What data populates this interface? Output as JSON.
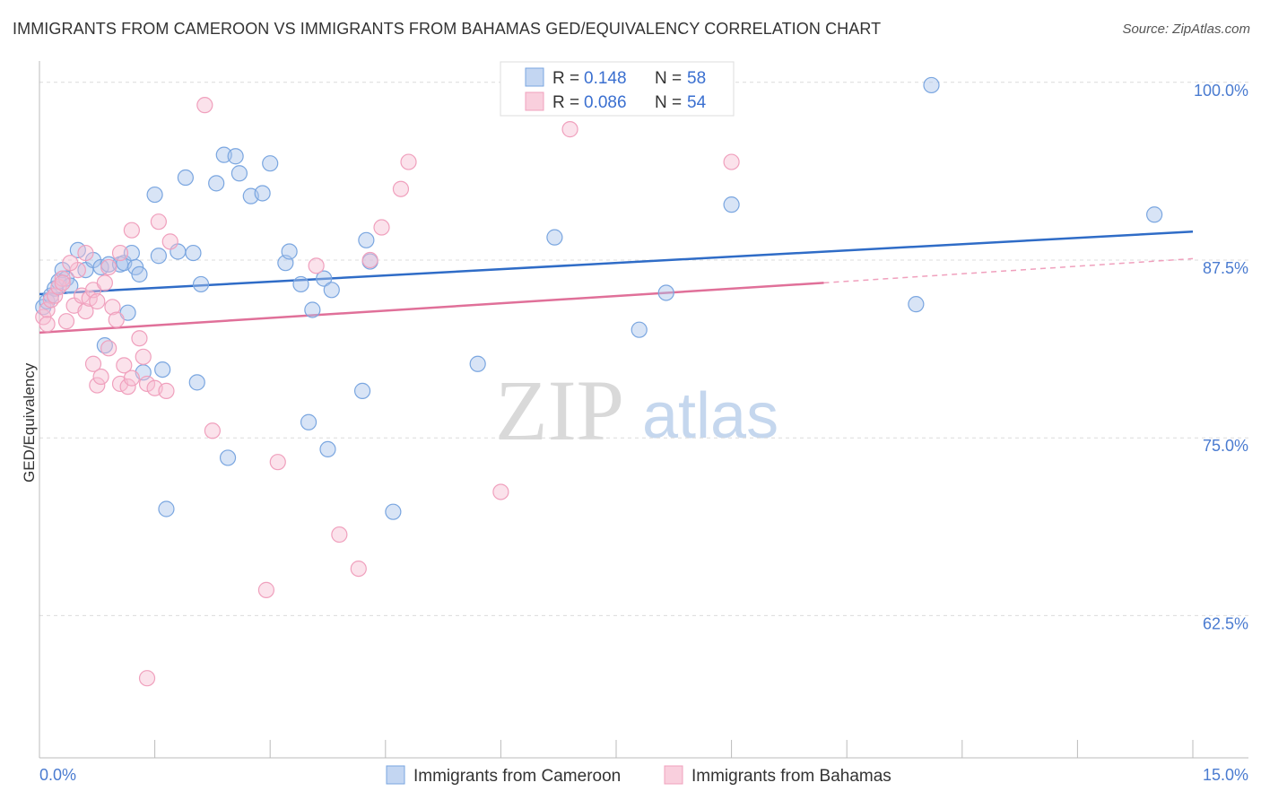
{
  "title": "IMMIGRANTS FROM CAMEROON VS IMMIGRANTS FROM BAHAMAS GED/EQUIVALENCY CORRELATION CHART",
  "source": "Source: ZipAtlas.com",
  "watermark": {
    "zip": "ZIP",
    "atlas": "atlas"
  },
  "legend": {
    "r_label": "R =",
    "n_label": "N =",
    "rows": [
      {
        "r": "0.148",
        "n": "58"
      },
      {
        "r": "0.086",
        "n": "54"
      }
    ]
  },
  "chart_data": {
    "type": "scatter",
    "title": "IMMIGRANTS FROM CAMEROON VS IMMIGRANTS FROM BAHAMAS GED/EQUIVALENCY CORRELATION CHART",
    "xlabel": "",
    "ylabel": "GED/Equivalency",
    "xlim": [
      0,
      15
    ],
    "ylim": [
      52.5,
      101.5
    ],
    "x_tick_labels": [
      "0.0%",
      "15.0%"
    ],
    "y_ticks": [
      62.5,
      75.0,
      87.5,
      100.0
    ],
    "y_tick_labels": [
      "62.5%",
      "75.0%",
      "87.5%",
      "100.0%"
    ],
    "grid": true,
    "legend_position": "bottom",
    "series": [
      {
        "name": "Immigrants from Cameroon",
        "color": "#7aa6e0",
        "r": 0.148,
        "n": 58,
        "trend": {
          "x": [
            0.0,
            15.0
          ],
          "y": [
            85.1,
            89.5
          ]
        },
        "points": [
          [
            0.05,
            84.2
          ],
          [
            0.1,
            84.6
          ],
          [
            0.15,
            85.0
          ],
          [
            0.2,
            85.5
          ],
          [
            0.25,
            86.0
          ],
          [
            0.3,
            86.8
          ],
          [
            0.35,
            86.2
          ],
          [
            0.4,
            85.7
          ],
          [
            0.5,
            88.2
          ],
          [
            0.6,
            86.8
          ],
          [
            0.7,
            87.5
          ],
          [
            0.8,
            87.0
          ],
          [
            0.9,
            87.2
          ],
          [
            1.05,
            87.2
          ],
          [
            1.1,
            87.3
          ],
          [
            1.2,
            88.0
          ],
          [
            1.25,
            87.0
          ],
          [
            1.3,
            86.5
          ],
          [
            1.55,
            87.8
          ],
          [
            1.8,
            88.1
          ],
          [
            2.0,
            88.0
          ],
          [
            2.1,
            85.8
          ],
          [
            1.5,
            92.1
          ],
          [
            1.9,
            93.3
          ],
          [
            2.3,
            92.9
          ],
          [
            2.4,
            94.9
          ],
          [
            2.55,
            94.8
          ],
          [
            2.6,
            93.6
          ],
          [
            2.75,
            92.0
          ],
          [
            2.9,
            92.2
          ],
          [
            3.0,
            94.3
          ],
          [
            3.2,
            87.3
          ],
          [
            3.25,
            88.1
          ],
          [
            3.4,
            85.8
          ],
          [
            3.55,
            84.0
          ],
          [
            3.7,
            86.2
          ],
          [
            3.8,
            85.4
          ],
          [
            0.85,
            81.5
          ],
          [
            1.15,
            83.8
          ],
          [
            1.35,
            79.6
          ],
          [
            1.6,
            79.8
          ],
          [
            2.05,
            78.9
          ],
          [
            2.45,
            73.6
          ],
          [
            3.5,
            76.1
          ],
          [
            3.75,
            74.2
          ],
          [
            4.25,
            88.9
          ],
          [
            4.3,
            87.4
          ],
          [
            4.2,
            78.3
          ],
          [
            1.65,
            70.0
          ],
          [
            4.6,
            69.8
          ],
          [
            5.7,
            80.2
          ],
          [
            6.7,
            89.1
          ],
          [
            7.8,
            82.6
          ],
          [
            8.15,
            85.2
          ],
          [
            9.0,
            91.4
          ],
          [
            11.4,
            84.4
          ],
          [
            11.6,
            99.8
          ],
          [
            14.5,
            90.7
          ]
        ]
      },
      {
        "name": "Immigrants from Bahamas",
        "color": "#f0a0bd",
        "r": 0.086,
        "n": 54,
        "trend": {
          "x": [
            0.0,
            10.2
          ],
          "y": [
            82.4,
            85.9
          ]
        },
        "trend_dashed": {
          "x": [
            10.2,
            15.0
          ],
          "y": [
            85.9,
            87.6
          ]
        },
        "points": [
          [
            0.05,
            83.5
          ],
          [
            0.1,
            84.0
          ],
          [
            0.15,
            84.7
          ],
          [
            0.2,
            85.0
          ],
          [
            0.25,
            85.6
          ],
          [
            0.3,
            86.2
          ],
          [
            0.35,
            83.2
          ],
          [
            0.45,
            84.3
          ],
          [
            0.5,
            86.8
          ],
          [
            0.55,
            85.0
          ],
          [
            0.6,
            83.9
          ],
          [
            0.65,
            84.8
          ],
          [
            0.7,
            85.4
          ],
          [
            0.75,
            84.6
          ],
          [
            0.85,
            85.9
          ],
          [
            0.9,
            87.0
          ],
          [
            0.95,
            84.2
          ],
          [
            1.0,
            83.3
          ],
          [
            1.05,
            88.0
          ],
          [
            0.4,
            87.3
          ],
          [
            1.2,
            89.6
          ],
          [
            1.55,
            90.2
          ],
          [
            1.7,
            88.8
          ],
          [
            2.15,
            98.4
          ],
          [
            0.7,
            80.2
          ],
          [
            0.75,
            78.7
          ],
          [
            0.8,
            79.3
          ],
          [
            0.9,
            81.3
          ],
          [
            1.05,
            78.8
          ],
          [
            1.1,
            80.1
          ],
          [
            1.15,
            78.6
          ],
          [
            1.2,
            79.2
          ],
          [
            1.35,
            80.7
          ],
          [
            1.4,
            78.8
          ],
          [
            1.5,
            78.5
          ],
          [
            1.65,
            78.3
          ],
          [
            2.25,
            75.5
          ],
          [
            3.1,
            73.3
          ],
          [
            3.6,
            87.1
          ],
          [
            4.3,
            87.5
          ],
          [
            4.45,
            89.8
          ],
          [
            4.7,
            92.5
          ],
          [
            4.8,
            94.4
          ],
          [
            6.0,
            71.2
          ],
          [
            6.9,
            96.7
          ],
          [
            3.9,
            68.2
          ],
          [
            4.15,
            65.8
          ],
          [
            2.95,
            64.3
          ],
          [
            1.4,
            58.1
          ],
          [
            9.0,
            94.4
          ],
          [
            0.3,
            85.9
          ],
          [
            0.6,
            88.0
          ],
          [
            0.1,
            83.0
          ],
          [
            1.3,
            82.0
          ]
        ]
      }
    ]
  },
  "bottom_legend": [
    "Immigrants from Cameroon",
    "Immigrants from Bahamas"
  ]
}
